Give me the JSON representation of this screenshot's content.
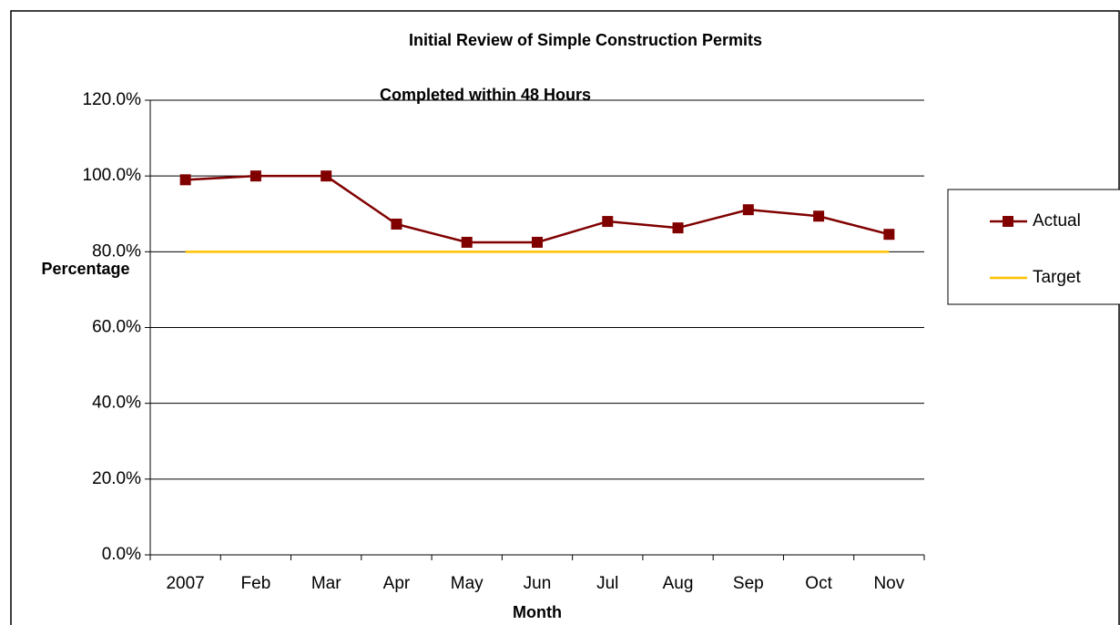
{
  "chart_data": {
    "type": "line",
    "title": "Initial Review of Simple Construction Permits",
    "subtitle": "Completed within 48 Hours",
    "y_label": "Percentage",
    "x_label": "Month",
    "categories": [
      "2007",
      "Feb",
      "Mar",
      "Apr",
      "May",
      "Jun",
      "Jul",
      "Aug",
      "Sep",
      "Oct",
      "Nov"
    ],
    "series": [
      {
        "name": "Actual",
        "color": "#800000",
        "marker": "square",
        "values": [
          99.0,
          100,
          100,
          87.3,
          82.5,
          82.5,
          88.0,
          86.3,
          91.1,
          89.4,
          84.6
        ]
      },
      {
        "name": "Target",
        "color": "#ffc000",
        "values": [
          80,
          80,
          80,
          80,
          80,
          80,
          80,
          80,
          80,
          80,
          80
        ]
      }
    ],
    "ylim": [
      0,
      120
    ],
    "yticks": [
      {
        "value": 0,
        "label": "0.0%"
      },
      {
        "value": 20,
        "label": "20.0%"
      },
      {
        "value": 40,
        "label": "40.0%"
      },
      {
        "value": 60,
        "label": "60.0%"
      },
      {
        "value": 80,
        "label": "80.0%"
      },
      {
        "value": 100,
        "label": "100.0%"
      },
      {
        "value": 120,
        "label": "120.0%"
      }
    ],
    "grid": true,
    "legend": "right"
  }
}
